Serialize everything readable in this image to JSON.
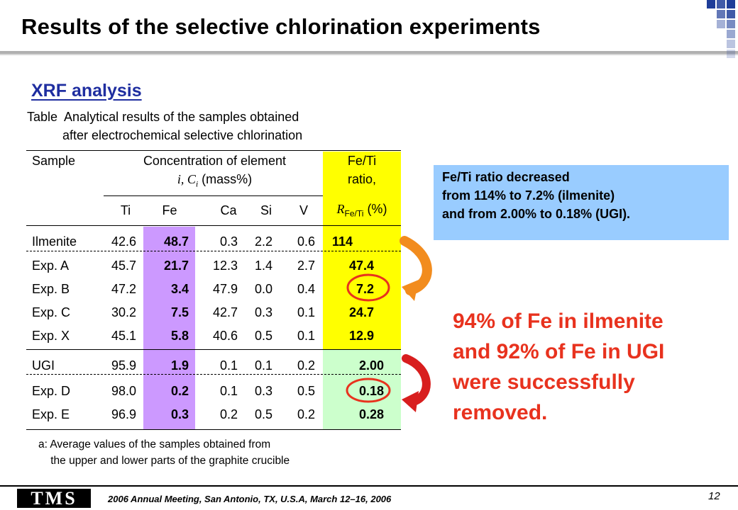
{
  "title": "Results of the selective chlorination experiments",
  "subtitle": "XRF analysis",
  "table_caption": "Table  Analytical results of the samples obtained\n          after electrochemical selective chlorination",
  "table": {
    "header": {
      "sample": "Sample",
      "concentration_line1": "Concentration of element",
      "concentration_var": "i, C",
      "concentration_sub": "i",
      "concentration_unit": " (mass%)",
      "ratio_line1": "Fe/Ti",
      "ratio_line2": "ratio,",
      "ratio_var": "R",
      "ratio_sub": "Fe/Ti",
      "ratio_unit": " (%)",
      "elements": [
        "Ti",
        "Fe",
        "Ca",
        "Si",
        "V"
      ]
    },
    "rows": [
      {
        "sample": "Ilmenite",
        "ti": "42.6",
        "fe": "48.7",
        "ca": "0.3",
        "si": "2.2",
        "v": "0.6",
        "ratio": "114"
      },
      {
        "sample": "Exp. A",
        "ti": "45.7",
        "fe": "21.7",
        "ca": "12.3",
        "si": "1.4",
        "v": "2.7",
        "ratio": "47.4"
      },
      {
        "sample": "Exp. B",
        "ti": "47.2",
        "fe": "3.4",
        "ca": "47.9",
        "si": "0.0",
        "v": "0.4",
        "ratio": "7.2"
      },
      {
        "sample": "Exp. C",
        "ti": "30.2",
        "fe": "7.5",
        "ca": "42.7",
        "si": "0.3",
        "v": "0.1",
        "ratio": "24.7"
      },
      {
        "sample": "Exp. X",
        "ti": "45.1",
        "fe": "5.8",
        "ca": "40.6",
        "si": "0.5",
        "v": "0.1",
        "ratio": "12.9"
      },
      {
        "sample": "UGI",
        "ti": "95.9",
        "fe": "1.9",
        "ca": "0.1",
        "si": "0.1",
        "v": "0.2",
        "ratio": "2.00"
      },
      {
        "sample": "Exp. D",
        "ti": "98.0",
        "fe": "0.2",
        "ca": "0.1",
        "si": "0.3",
        "v": "0.5",
        "ratio": "0.18"
      },
      {
        "sample": "Exp. E",
        "ti": "96.9",
        "fe": "0.3",
        "ca": "0.2",
        "si": "0.5",
        "v": "0.2",
        "ratio": "0.28"
      }
    ]
  },
  "footnote": "a: Average values of the samples obtained from\n    the upper and lower parts of the graphite crucible",
  "info_box": {
    "line1": "Fe/Ti ratio decreased",
    "line2": "from 114% to 7.2% (ilmenite)",
    "line3": "and from 2.00% to 0.18% (UGI)."
  },
  "conclusion": {
    "line1": "94% of Fe in ilmenite",
    "line2": "and 92% of Fe in UGI",
    "line3": "were successfully",
    "line4": "removed."
  },
  "footer": {
    "logo": "TMS",
    "meeting": "2006 Annual Meeting, San Antonio, TX, U.S.A, March 12–16, 2006",
    "page": "12"
  },
  "colors": {
    "accent_blue": "#1f3d99",
    "ratio_ilmenite_bg": "#ffff00",
    "ratio_ugi_bg": "#ccffcc",
    "fe_column_bg": "#cc99ff",
    "info_box_bg": "#99ccff",
    "conclusion_text": "#e8321e",
    "arrow_orange": "#f28c1e",
    "arrow_red": "#d81e1e"
  }
}
